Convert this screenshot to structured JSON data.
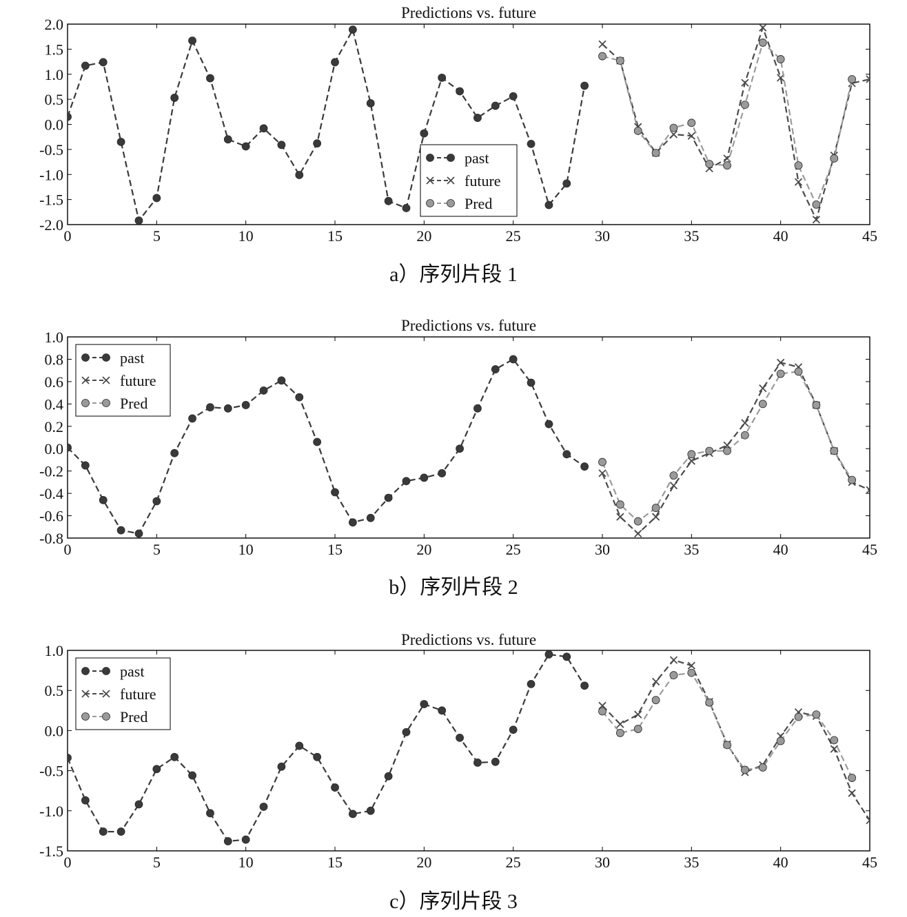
{
  "figure": {
    "captions": [
      "a）序列片段 1",
      "b）序列片段 2",
      "c）序列片段 3"
    ]
  },
  "chart_data": [
    {
      "type": "line",
      "title": "Predictions vs. future",
      "xlabel": "",
      "ylabel": "",
      "xlim": [
        0,
        45
      ],
      "ylim": [
        -2.0,
        2.0
      ],
      "xticks": [
        "0",
        "5",
        "10",
        "15",
        "20",
        "25",
        "30",
        "35",
        "40",
        "45"
      ],
      "yticks": [
        "2.0",
        "1.5",
        "1.0",
        "0.5",
        "0.0",
        "-0.5",
        "-1.0",
        "-1.5",
        "-2.0"
      ],
      "grid": false,
      "legend_position": "lower-center",
      "series": [
        {
          "name": "past",
          "marker": "circle",
          "color": "#3a3a3a",
          "x": [
            0,
            1,
            2,
            3,
            4,
            5,
            6,
            7,
            8,
            9,
            10,
            11,
            12,
            13,
            14,
            15,
            16,
            17,
            18,
            19,
            20,
            21,
            22,
            23,
            24,
            25,
            26,
            27,
            28,
            29
          ],
          "y": [
            0.15,
            1.17,
            1.24,
            -0.35,
            -1.92,
            -1.47,
            0.53,
            1.67,
            0.92,
            -0.3,
            -0.44,
            -0.08,
            -0.41,
            -1.01,
            -0.38,
            1.24,
            1.89,
            0.42,
            -1.53,
            -1.67,
            -0.18,
            0.93,
            0.66,
            0.13,
            0.37,
            0.56,
            -0.39,
            -1.61,
            -1.18,
            0.77
          ]
        },
        {
          "name": "future",
          "marker": "x",
          "color": "#4a4a4a",
          "x": [
            30,
            31,
            32,
            33,
            34,
            35,
            36,
            37,
            38,
            39,
            40,
            41,
            42,
            43,
            44,
            45
          ],
          "y": [
            1.6,
            1.27,
            -0.05,
            -0.57,
            -0.2,
            -0.23,
            -0.88,
            -0.68,
            0.83,
            1.93,
            0.93,
            -1.15,
            -1.9,
            -0.62,
            0.82,
            0.9
          ]
        },
        {
          "name": "Pred",
          "marker": "circle",
          "color": "#9a9a9a",
          "x": [
            30,
            31,
            32,
            33,
            34,
            35,
            36,
            37,
            38,
            39,
            40,
            41,
            42,
            43,
            44
          ],
          "y": [
            1.36,
            1.27,
            -0.13,
            -0.57,
            -0.07,
            0.03,
            -0.79,
            -0.82,
            0.39,
            1.63,
            1.3,
            -0.82,
            -1.6,
            -0.68,
            0.9
          ]
        }
      ]
    },
    {
      "type": "line",
      "title": "Predictions vs. future",
      "xlabel": "",
      "ylabel": "",
      "xlim": [
        0,
        45
      ],
      "ylim": [
        -0.8,
        1.0
      ],
      "xticks": [
        "0",
        "5",
        "10",
        "15",
        "20",
        "25",
        "30",
        "35",
        "40",
        "45"
      ],
      "yticks": [
        "1.0",
        "0.8",
        "0.6",
        "0.4",
        "0.2",
        "0.0",
        "-0.2",
        "-0.4",
        "-0.6",
        "-0.8"
      ],
      "grid": false,
      "legend_position": "upper-left",
      "series": [
        {
          "name": "past",
          "marker": "circle",
          "color": "#3a3a3a",
          "x": [
            0,
            1,
            2,
            3,
            4,
            5,
            6,
            7,
            8,
            9,
            10,
            11,
            12,
            13,
            14,
            15,
            16,
            17,
            18,
            19,
            20,
            21,
            22,
            23,
            24,
            25,
            26,
            27,
            28,
            29
          ],
          "y": [
            0.01,
            -0.15,
            -0.46,
            -0.73,
            -0.76,
            -0.47,
            -0.04,
            0.27,
            0.37,
            0.36,
            0.39,
            0.52,
            0.61,
            0.46,
            0.06,
            -0.39,
            -0.66,
            -0.62,
            -0.44,
            -0.29,
            -0.26,
            -0.22,
            0.0,
            0.36,
            0.71,
            0.8,
            0.59,
            0.22,
            -0.05,
            -0.16
          ]
        },
        {
          "name": "future",
          "marker": "x",
          "color": "#4a4a4a",
          "x": [
            30,
            31,
            32,
            33,
            34,
            35,
            36,
            37,
            38,
            39,
            40,
            41,
            42,
            43,
            44,
            45
          ],
          "y": [
            -0.22,
            -0.61,
            -0.76,
            -0.61,
            -0.33,
            -0.11,
            -0.04,
            0.03,
            0.23,
            0.54,
            0.77,
            0.73,
            0.39,
            -0.02,
            -0.3,
            -0.37
          ]
        },
        {
          "name": "Pred",
          "marker": "circle",
          "color": "#9a9a9a",
          "x": [
            30,
            31,
            32,
            33,
            34,
            35,
            36,
            37,
            38,
            39,
            40,
            41,
            42,
            43,
            44
          ],
          "y": [
            -0.12,
            -0.5,
            -0.65,
            -0.53,
            -0.24,
            -0.05,
            -0.02,
            -0.02,
            0.12,
            0.4,
            0.67,
            0.69,
            0.39,
            -0.02,
            -0.28
          ]
        }
      ]
    },
    {
      "type": "line",
      "title": "Predictions vs. future",
      "xlabel": "",
      "ylabel": "",
      "xlim": [
        0,
        45
      ],
      "ylim": [
        -1.5,
        1.0
      ],
      "xticks": [
        "0",
        "5",
        "10",
        "15",
        "20",
        "25",
        "30",
        "35",
        "40",
        "45"
      ],
      "yticks": [
        "1.0",
        "0.5",
        "0.0",
        "-0.5",
        "-1.0",
        "-1.5"
      ],
      "grid": false,
      "legend_position": "upper-left",
      "series": [
        {
          "name": "past",
          "marker": "circle",
          "color": "#3a3a3a",
          "x": [
            0,
            1,
            2,
            3,
            4,
            5,
            6,
            7,
            8,
            9,
            10,
            11,
            12,
            13,
            14,
            15,
            16,
            17,
            18,
            19,
            20,
            21,
            22,
            23,
            24,
            25,
            26,
            27,
            28,
            29
          ],
          "y": [
            -0.34,
            -0.87,
            -1.26,
            -1.26,
            -0.92,
            -0.48,
            -0.33,
            -0.56,
            -1.03,
            -1.38,
            -1.36,
            -0.95,
            -0.45,
            -0.19,
            -0.33,
            -0.71,
            -1.04,
            -1.0,
            -0.57,
            -0.02,
            0.33,
            0.25,
            -0.09,
            -0.4,
            -0.39,
            0.01,
            0.58,
            0.95,
            0.92,
            0.56
          ]
        },
        {
          "name": "future",
          "marker": "x",
          "color": "#4a4a4a",
          "x": [
            30,
            31,
            32,
            33,
            34,
            35,
            36,
            37,
            38,
            39,
            40,
            41,
            42,
            43,
            44,
            45
          ],
          "y": [
            0.31,
            0.08,
            0.2,
            0.61,
            0.88,
            0.81,
            0.36,
            -0.17,
            -0.52,
            -0.43,
            -0.07,
            0.23,
            0.18,
            -0.23,
            -0.78,
            -1.12
          ]
        },
        {
          "name": "Pred",
          "marker": "circle",
          "color": "#9a9a9a",
          "x": [
            30,
            31,
            32,
            33,
            34,
            35,
            36,
            37,
            38,
            39,
            40,
            41,
            42,
            43,
            44
          ],
          "y": [
            0.24,
            -0.03,
            0.02,
            0.38,
            0.69,
            0.72,
            0.35,
            -0.18,
            -0.49,
            -0.46,
            -0.13,
            0.17,
            0.2,
            -0.12,
            -0.59
          ]
        }
      ]
    }
  ]
}
